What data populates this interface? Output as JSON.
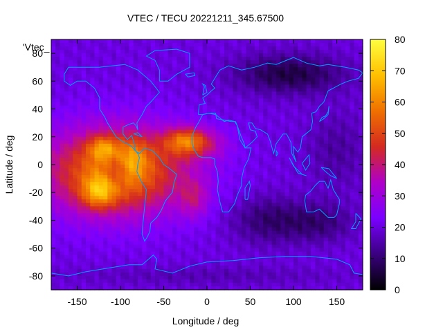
{
  "chart_data": {
    "type": "heatmap",
    "title": "VTEC / TECU 20221211_345.67500",
    "xlabel": "Longitude / deg",
    "ylabel": "Latitude / deg",
    "key_label": "'Vtec_",
    "xlim": [
      -180,
      180
    ],
    "ylim": [
      -90,
      90
    ],
    "x_ticks": [
      -150,
      -100,
      -50,
      0,
      50,
      100,
      150
    ],
    "y_ticks": [
      -80,
      -60,
      -40,
      -20,
      0,
      20,
      40,
      60,
      80
    ],
    "colorbar": {
      "range": [
        0,
        80
      ],
      "ticks": [
        0,
        10,
        20,
        30,
        40,
        50,
        60,
        70,
        80
      ],
      "palette": [
        "#000000",
        "#3a0080",
        "#7a00ff",
        "#b000c8",
        "#d42a20",
        "#f07000",
        "#ffc000",
        "#ffff40"
      ]
    },
    "grid_resolution_deg": [
      5,
      2.5
    ],
    "peaks": [
      {
        "lon": -125,
        "lat": -20,
        "vtec": 66
      },
      {
        "lon": -120,
        "lat": 12,
        "vtec": 62
      },
      {
        "lon": -25,
        "lat": 18,
        "vtec": 60
      },
      {
        "lon": -85,
        "lat": 5,
        "vtec": 60
      }
    ],
    "min_region": {
      "lon": 95,
      "lat": 65,
      "vtec": 5
    },
    "coastline_color": "#00a0ff"
  }
}
